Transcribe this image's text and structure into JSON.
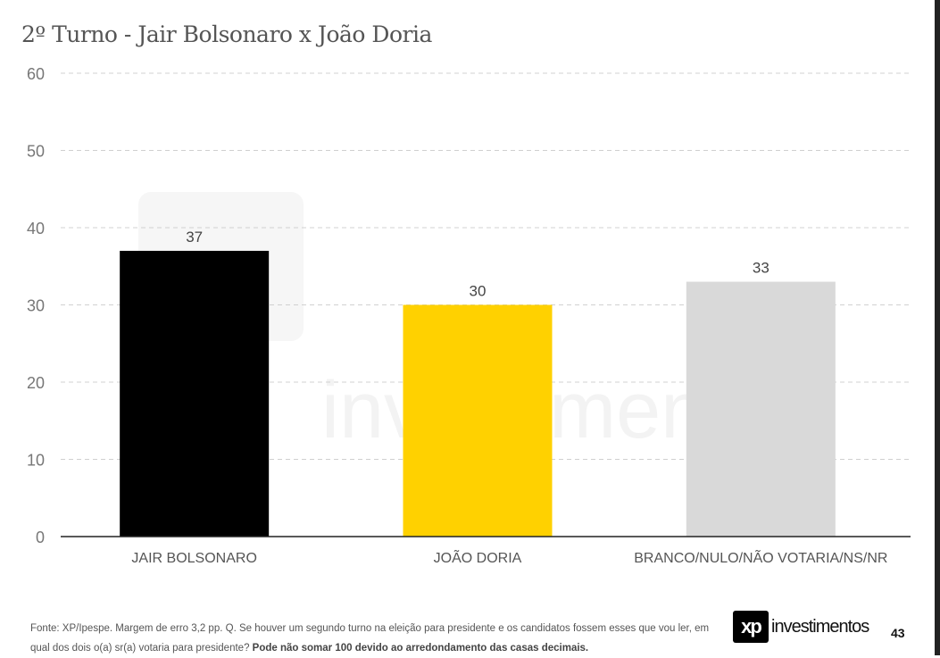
{
  "chart_data": {
    "type": "bar",
    "title": "2º Turno - Jair Bolsonaro x João Doria",
    "categories": [
      "JAIR BOLSONARO",
      "JOÃO DORIA",
      "BRANCO/NULO/NÃO VOTARIA/NS/NR"
    ],
    "values": [
      37,
      30,
      33
    ],
    "colors": [
      "#000000",
      "#FFD100",
      "#D9D9D9"
    ],
    "ylim": [
      0,
      60
    ],
    "yticks": [
      0,
      10,
      20,
      30,
      40,
      50,
      60
    ],
    "grid": true,
    "xlabel": "",
    "ylabel": ""
  },
  "watermark": "xp investimentos",
  "footer": {
    "text": "Fonte: XP/Ipespe. Margem de erro 3,2 pp. Q. Se houver um segundo turno na eleição para presidente e os candidatos fossem esses que vou ler, em qual dos dois o(a) sr(a) votaria para presidente? ",
    "bold": "Pode não somar 100 devido ao arredondamento das casas decimais."
  },
  "logo": {
    "mark": "xp",
    "text": "investimentos"
  },
  "page_number": "43"
}
